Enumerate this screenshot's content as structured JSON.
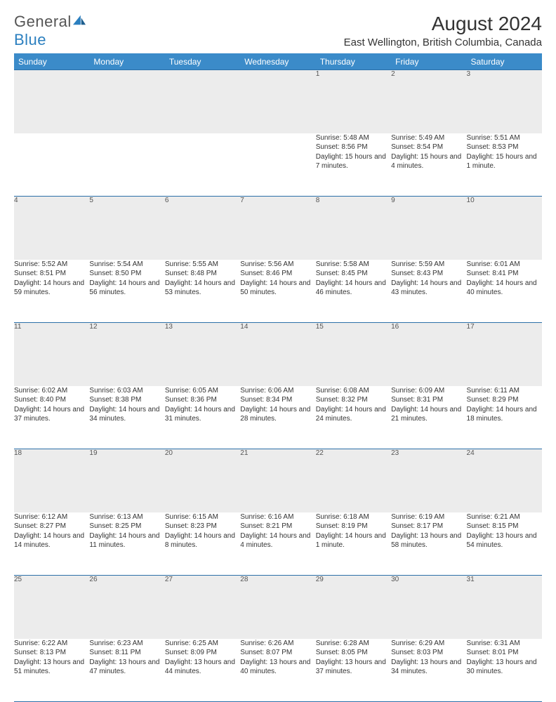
{
  "brand": {
    "part1": "General",
    "part2": "Blue"
  },
  "title": "August 2024",
  "location": "East Wellington, British Columbia, Canada",
  "colors": {
    "header_bg": "#3b8bc9",
    "header_text": "#ffffff",
    "daynum_bg": "#ececec",
    "border": "#2b6fa8",
    "body_text": "#333333",
    "logo_gray": "#555555",
    "logo_blue": "#2b7fbf",
    "page_bg": "#ffffff"
  },
  "dayHeaders": [
    "Sunday",
    "Monday",
    "Tuesday",
    "Wednesday",
    "Thursday",
    "Friday",
    "Saturday"
  ],
  "weeks": [
    [
      null,
      null,
      null,
      null,
      {
        "n": "1",
        "sr": "5:48 AM",
        "ss": "8:56 PM",
        "dl": "15 hours and 7 minutes."
      },
      {
        "n": "2",
        "sr": "5:49 AM",
        "ss": "8:54 PM",
        "dl": "15 hours and 4 minutes."
      },
      {
        "n": "3",
        "sr": "5:51 AM",
        "ss": "8:53 PM",
        "dl": "15 hours and 1 minute."
      }
    ],
    [
      {
        "n": "4",
        "sr": "5:52 AM",
        "ss": "8:51 PM",
        "dl": "14 hours and 59 minutes."
      },
      {
        "n": "5",
        "sr": "5:54 AM",
        "ss": "8:50 PM",
        "dl": "14 hours and 56 minutes."
      },
      {
        "n": "6",
        "sr": "5:55 AM",
        "ss": "8:48 PM",
        "dl": "14 hours and 53 minutes."
      },
      {
        "n": "7",
        "sr": "5:56 AM",
        "ss": "8:46 PM",
        "dl": "14 hours and 50 minutes."
      },
      {
        "n": "8",
        "sr": "5:58 AM",
        "ss": "8:45 PM",
        "dl": "14 hours and 46 minutes."
      },
      {
        "n": "9",
        "sr": "5:59 AM",
        "ss": "8:43 PM",
        "dl": "14 hours and 43 minutes."
      },
      {
        "n": "10",
        "sr": "6:01 AM",
        "ss": "8:41 PM",
        "dl": "14 hours and 40 minutes."
      }
    ],
    [
      {
        "n": "11",
        "sr": "6:02 AM",
        "ss": "8:40 PM",
        "dl": "14 hours and 37 minutes."
      },
      {
        "n": "12",
        "sr": "6:03 AM",
        "ss": "8:38 PM",
        "dl": "14 hours and 34 minutes."
      },
      {
        "n": "13",
        "sr": "6:05 AM",
        "ss": "8:36 PM",
        "dl": "14 hours and 31 minutes."
      },
      {
        "n": "14",
        "sr": "6:06 AM",
        "ss": "8:34 PM",
        "dl": "14 hours and 28 minutes."
      },
      {
        "n": "15",
        "sr": "6:08 AM",
        "ss": "8:32 PM",
        "dl": "14 hours and 24 minutes."
      },
      {
        "n": "16",
        "sr": "6:09 AM",
        "ss": "8:31 PM",
        "dl": "14 hours and 21 minutes."
      },
      {
        "n": "17",
        "sr": "6:11 AM",
        "ss": "8:29 PM",
        "dl": "14 hours and 18 minutes."
      }
    ],
    [
      {
        "n": "18",
        "sr": "6:12 AM",
        "ss": "8:27 PM",
        "dl": "14 hours and 14 minutes."
      },
      {
        "n": "19",
        "sr": "6:13 AM",
        "ss": "8:25 PM",
        "dl": "14 hours and 11 minutes."
      },
      {
        "n": "20",
        "sr": "6:15 AM",
        "ss": "8:23 PM",
        "dl": "14 hours and 8 minutes."
      },
      {
        "n": "21",
        "sr": "6:16 AM",
        "ss": "8:21 PM",
        "dl": "14 hours and 4 minutes."
      },
      {
        "n": "22",
        "sr": "6:18 AM",
        "ss": "8:19 PM",
        "dl": "14 hours and 1 minute."
      },
      {
        "n": "23",
        "sr": "6:19 AM",
        "ss": "8:17 PM",
        "dl": "13 hours and 58 minutes."
      },
      {
        "n": "24",
        "sr": "6:21 AM",
        "ss": "8:15 PM",
        "dl": "13 hours and 54 minutes."
      }
    ],
    [
      {
        "n": "25",
        "sr": "6:22 AM",
        "ss": "8:13 PM",
        "dl": "13 hours and 51 minutes."
      },
      {
        "n": "26",
        "sr": "6:23 AM",
        "ss": "8:11 PM",
        "dl": "13 hours and 47 minutes."
      },
      {
        "n": "27",
        "sr": "6:25 AM",
        "ss": "8:09 PM",
        "dl": "13 hours and 44 minutes."
      },
      {
        "n": "28",
        "sr": "6:26 AM",
        "ss": "8:07 PM",
        "dl": "13 hours and 40 minutes."
      },
      {
        "n": "29",
        "sr": "6:28 AM",
        "ss": "8:05 PM",
        "dl": "13 hours and 37 minutes."
      },
      {
        "n": "30",
        "sr": "6:29 AM",
        "ss": "8:03 PM",
        "dl": "13 hours and 34 minutes."
      },
      {
        "n": "31",
        "sr": "6:31 AM",
        "ss": "8:01 PM",
        "dl": "13 hours and 30 minutes."
      }
    ]
  ],
  "labels": {
    "sunrise": "Sunrise:",
    "sunset": "Sunset:",
    "daylight": "Daylight:"
  }
}
